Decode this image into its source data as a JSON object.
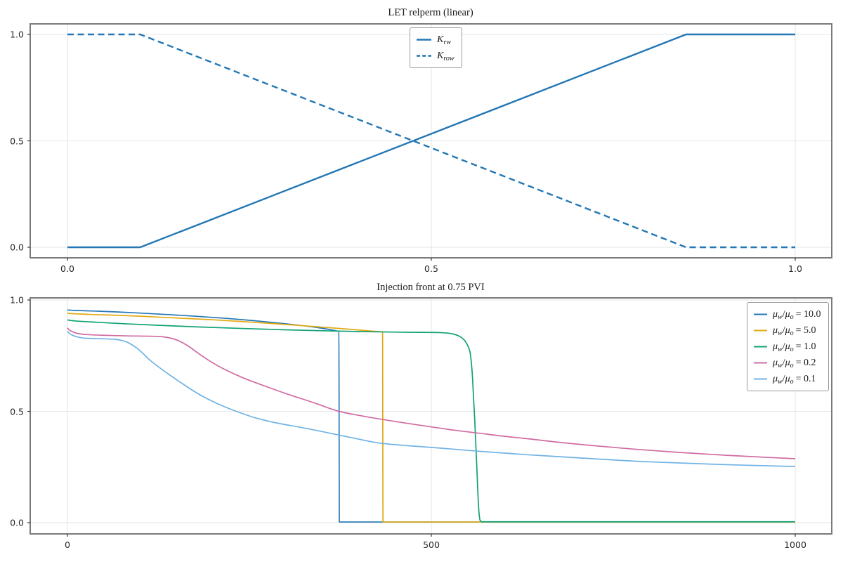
{
  "chart_data": [
    {
      "type": "line",
      "title": "LET relperm (linear)",
      "xlim": [
        -0.05,
        1.05
      ],
      "ylim": [
        -0.05,
        1.05
      ],
      "grid": true,
      "legend_position": "upper center",
      "xticks": {
        "values": [
          0.0,
          0.5,
          1.0
        ],
        "labels": [
          "0.0",
          "0.5",
          "1.0"
        ]
      },
      "yticks": {
        "values": [
          0.0,
          0.5,
          1.0
        ],
        "labels": [
          "0.0",
          "0.5",
          "1.0"
        ]
      },
      "legend": {
        "entries": [
          {
            "base": "K",
            "sub": "rw"
          },
          {
            "base": "K",
            "sub": "row"
          }
        ]
      },
      "series": [
        {
          "name": "Krw",
          "style": "solid",
          "color": "#2377b4",
          "x": [
            0,
            0.1,
            0.85,
            1.0
          ],
          "y": [
            0,
            0,
            1.0,
            1.0
          ]
        },
        {
          "name": "Krow",
          "style": "dashed",
          "color": "#2377b4",
          "x": [
            0,
            0.1,
            0.85,
            1.0
          ],
          "y": [
            1.0,
            1.0,
            0,
            0
          ]
        }
      ]
    },
    {
      "type": "line",
      "title": "Injection front at 0.75 PVI",
      "xlim": [
        -50,
        1050
      ],
      "ylim": [
        -0.05,
        1.01
      ],
      "grid": true,
      "legend_position": "upper right",
      "xticks": {
        "values": [
          0,
          500,
          1000
        ],
        "labels": [
          "0",
          "500",
          "1000"
        ]
      },
      "yticks": {
        "values": [
          0.0,
          0.5,
          1.0
        ],
        "labels": [
          "0.0",
          "0.5",
          "1.0"
        ]
      },
      "legend_symbol": {
        "mu": "μ",
        "w": "w",
        "o": "o",
        "slash": "/"
      },
      "series": [
        {
          "name": "mu-ratio-10.0",
          "legend_value": "= 10.0",
          "style": "solid",
          "color": "#2377b4",
          "x": [
            0,
            10,
            40,
            70,
            100,
            140,
            180,
            220,
            260,
            300,
            330,
            350,
            362,
            370,
            373,
            373.6,
            1000
          ],
          "y": [
            0.955,
            0.953,
            0.95,
            0.946,
            0.941,
            0.934,
            0.926,
            0.917,
            0.906,
            0.893,
            0.882,
            0.873,
            0.866,
            0.861,
            0.859,
            0.003,
            0.003
          ]
        },
        {
          "name": "mu-ratio-5.0",
          "legend_value": "= 5.0",
          "style": "solid",
          "color": "#e2a912",
          "x": [
            0,
            10,
            40,
            70,
            100,
            150,
            200,
            250,
            300,
            350,
            390,
            415,
            428,
            433,
            433.6,
            1000
          ],
          "y": [
            0.94,
            0.938,
            0.934,
            0.931,
            0.927,
            0.919,
            0.911,
            0.901,
            0.89,
            0.878,
            0.868,
            0.861,
            0.858,
            0.857,
            0.003,
            0.003
          ]
        },
        {
          "name": "mu-ratio-1.0",
          "legend_value": "= 1.0",
          "style": "solid",
          "color": "#11a176",
          "x": [
            0,
            10,
            40,
            80,
            127,
            180,
            240,
            300,
            360,
            420,
            470,
            505,
            520,
            530,
            538,
            544,
            549,
            553,
            556,
            558,
            559.5,
            561,
            562.5,
            564,
            565.5,
            567,
            570,
            1000
          ],
          "y": [
            0.91,
            0.906,
            0.9,
            0.893,
            0.886,
            0.879,
            0.872,
            0.866,
            0.861,
            0.857,
            0.855,
            0.854,
            0.852,
            0.847,
            0.838,
            0.824,
            0.802,
            0.768,
            0.68,
            0.56,
            0.47,
            0.36,
            0.25,
            0.13,
            0.045,
            0.01,
            0.004,
            0.004
          ]
        },
        {
          "name": "mu-ratio-0.2",
          "legend_value": "= 0.2",
          "style": "solid",
          "color": "#d06ba2",
          "x": [
            0,
            3,
            8,
            15,
            25,
            45,
            80,
            127,
            140,
            152,
            165,
            180,
            196,
            215,
            243,
            270,
            300,
            340,
            373,
            400,
            432,
            465,
            500,
            532,
            565,
            600,
            632,
            672,
            712,
            775,
            842,
            920,
            1000
          ],
          "y": [
            0.875,
            0.864,
            0.856,
            0.849,
            0.845,
            0.842,
            0.839,
            0.836,
            0.83,
            0.818,
            0.795,
            0.76,
            0.725,
            0.69,
            0.648,
            0.615,
            0.58,
            0.537,
            0.5,
            0.482,
            0.464,
            0.447,
            0.43,
            0.415,
            0.402,
            0.388,
            0.377,
            0.362,
            0.349,
            0.331,
            0.315,
            0.3,
            0.287
          ]
        },
        {
          "name": "mu-ratio-0.1",
          "legend_value": "= 0.1",
          "style": "solid",
          "color": "#6fb2e4",
          "x": [
            0,
            3,
            8,
            15,
            25,
            45,
            66,
            80,
            95,
            114,
            135,
            158,
            179,
            205,
            232,
            260,
            290,
            314,
            350,
            390,
            432,
            470,
            500,
            560,
            632,
            712,
            800,
            900,
            1000
          ],
          "y": [
            0.86,
            0.849,
            0.84,
            0.833,
            0.828,
            0.826,
            0.823,
            0.813,
            0.785,
            0.728,
            0.676,
            0.624,
            0.58,
            0.536,
            0.5,
            0.469,
            0.446,
            0.432,
            0.409,
            0.382,
            0.356,
            0.345,
            0.338,
            0.322,
            0.305,
            0.289,
            0.273,
            0.261,
            0.252
          ]
        }
      ]
    }
  ],
  "style_colors": {
    "grid": "#e6e6e6",
    "frame": "#7a7a7a",
    "tick": "#262626"
  }
}
